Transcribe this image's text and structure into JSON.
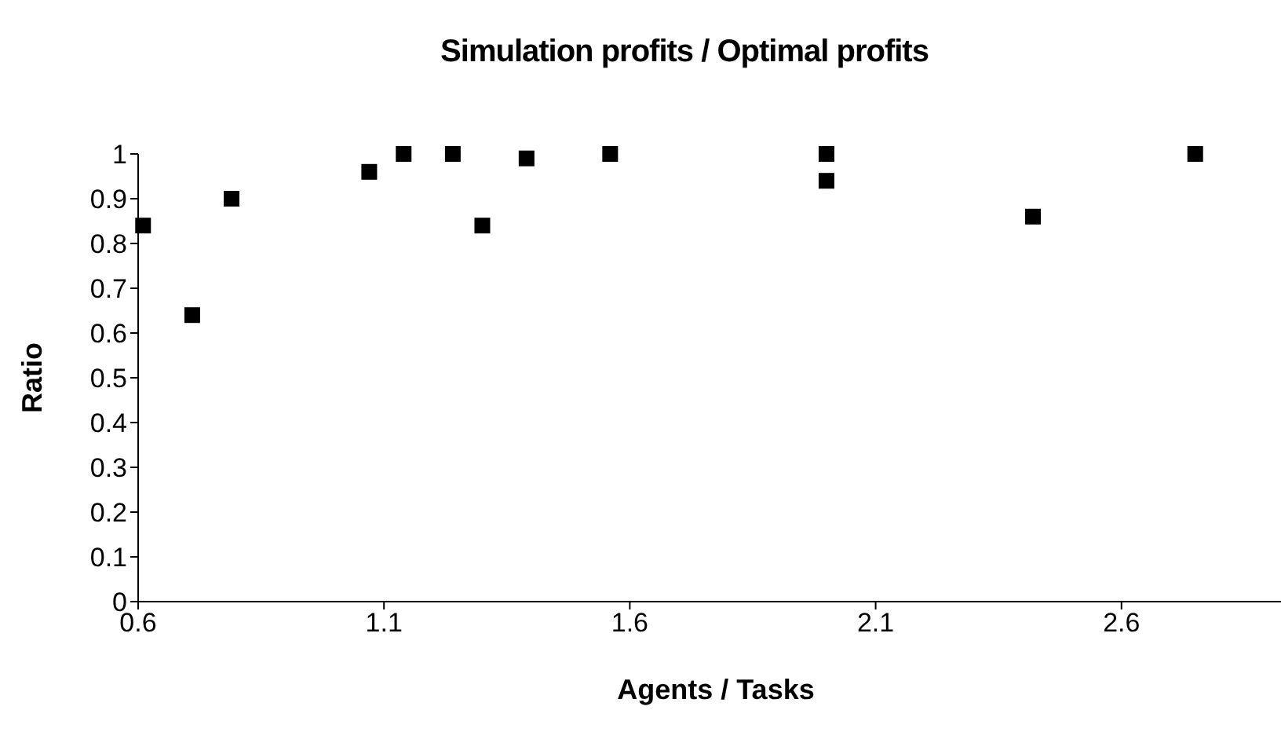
{
  "chart_data": {
    "type": "scatter",
    "title": "Simulation profits / Optimal profits",
    "xlabel": "Agents / Tasks",
    "ylabel": "Ratio",
    "x": [
      0.61,
      0.71,
      0.79,
      1.07,
      1.14,
      1.24,
      1.3,
      1.39,
      1.56,
      2.0,
      2.0,
      2.42,
      2.75
    ],
    "series": [
      {
        "color": "#000000",
        "values": [
          0.84,
          0.64,
          0.9,
          0.96,
          1.0,
          1.0,
          0.84,
          0.99,
          1.0,
          1.0,
          0.94,
          0.86,
          1.0
        ]
      }
    ],
    "xlim": [
      0.6,
      2.95
    ],
    "xticks": [
      0.6,
      1.1,
      1.6,
      2.1,
      2.6
    ],
    "ylim": [
      0,
      1
    ],
    "yticks": [
      0,
      0.1,
      0.2,
      0.3,
      0.4,
      0.5,
      0.6,
      0.7,
      0.8,
      0.9,
      1
    ],
    "grid": false,
    "legend": false,
    "marker": "square"
  }
}
